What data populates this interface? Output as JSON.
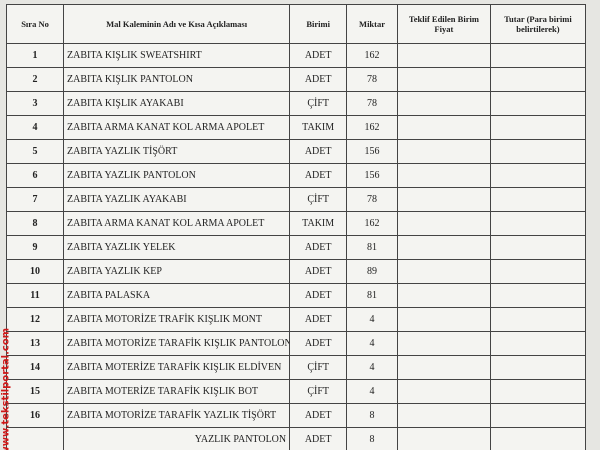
{
  "watermark": "www.tekstilportal.com",
  "table": {
    "header": [
      "Sıra No",
      "Mal Kaleminin Adı ve Kısa Açıklaması",
      "Birimi",
      "Miktar",
      "Teklif Edilen Birim Fiyat",
      "Tutar (Para birimi belirtilerek)"
    ],
    "rows": [
      [
        1,
        "ZABITA KIŞLIK SWEATSHIRT",
        "ADET",
        162
      ],
      [
        2,
        "ZABITA KIŞLIK PANTOLON",
        "ADET",
        78
      ],
      [
        3,
        "ZABITA KIŞLIK AYAKABI",
        "ÇİFT",
        78
      ],
      [
        4,
        "ZABITA ARMA KANAT KOL ARMA APOLET",
        "TAKIM",
        162
      ],
      [
        5,
        "ZABITA YAZLIK TİŞÖRT",
        "ADET",
        156
      ],
      [
        6,
        "ZABITA YAZLIK PANTOLON",
        "ADET",
        156
      ],
      [
        7,
        "ZABITA YAZLIK AYAKABI",
        "ÇİFT",
        78
      ],
      [
        8,
        "ZABITA ARMA KANAT KOL ARMA APOLET",
        "TAKIM",
        162
      ],
      [
        9,
        "ZABITA YAZLIK YELEK",
        "ADET",
        81
      ],
      [
        10,
        "ZABITA YAZLIK KEP",
        "ADET",
        89
      ],
      [
        11,
        "ZABITA PALASKA",
        "ADET",
        81
      ],
      [
        12,
        "ZABITA MOTORİZE TRAFİK KIŞLIK MONT",
        "ADET",
        4
      ],
      [
        13,
        "ZABITA MOTORİZE TARAFİK KIŞLIK PANTOLON",
        "ADET",
        4
      ],
      [
        14,
        "ZABITA MOTERİZE TARAFİK KIŞLIK ELDİVEN",
        "ÇİFT",
        4
      ],
      [
        15,
        "ZABITA MOTERİZE TARAFİK KIŞLIK BOT",
        "ÇİFT",
        4
      ],
      [
        16,
        "ZABITA MOTORİZE TARAFİK YAZLIK TİŞÖRT",
        "ADET",
        8
      ]
    ],
    "partial_row": {
      "item": "YAZLIK PANTOLON",
      "unit": "ADET",
      "qty": 8
    }
  }
}
